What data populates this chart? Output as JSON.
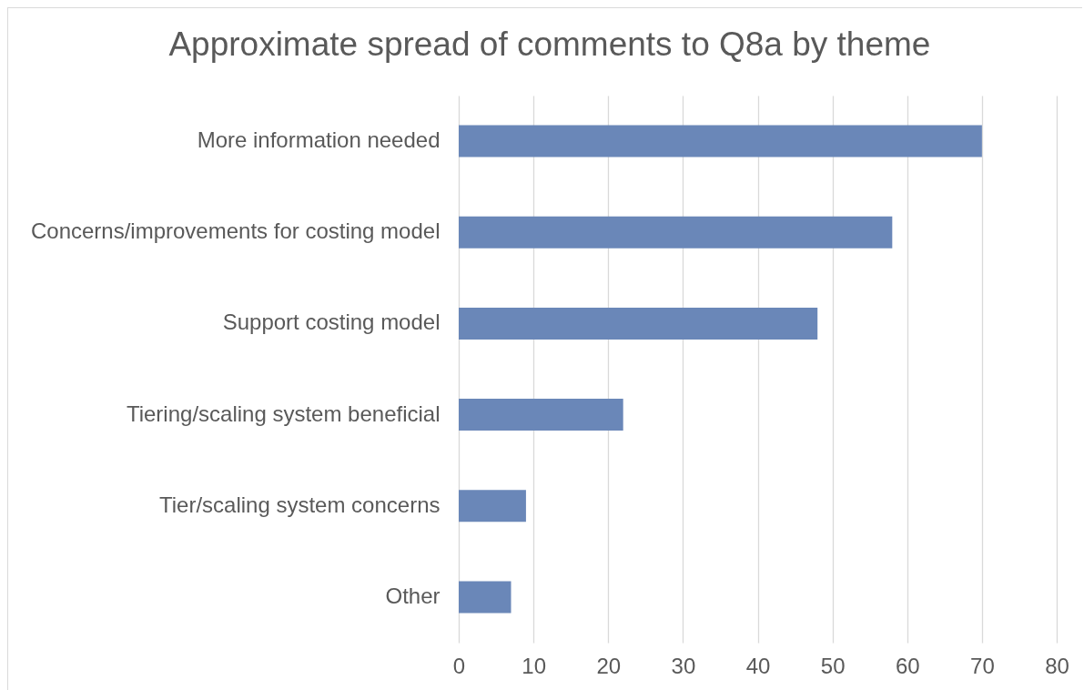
{
  "chart_data": {
    "type": "bar",
    "orientation": "horizontal",
    "title": "Approximate spread of comments to Q8a by theme",
    "categories": [
      "More information needed",
      "Concerns/improvements for costing model",
      "Support costing model",
      "Tiering/scaling system beneficial",
      "Tier/scaling system concerns",
      "Other"
    ],
    "values": [
      70,
      58,
      48,
      22,
      9,
      7
    ],
    "color": "#6a87b8",
    "xlim": [
      0,
      80
    ],
    "xticks": [
      0,
      10,
      20,
      30,
      40,
      50,
      60,
      70,
      80
    ],
    "grid": "x"
  }
}
